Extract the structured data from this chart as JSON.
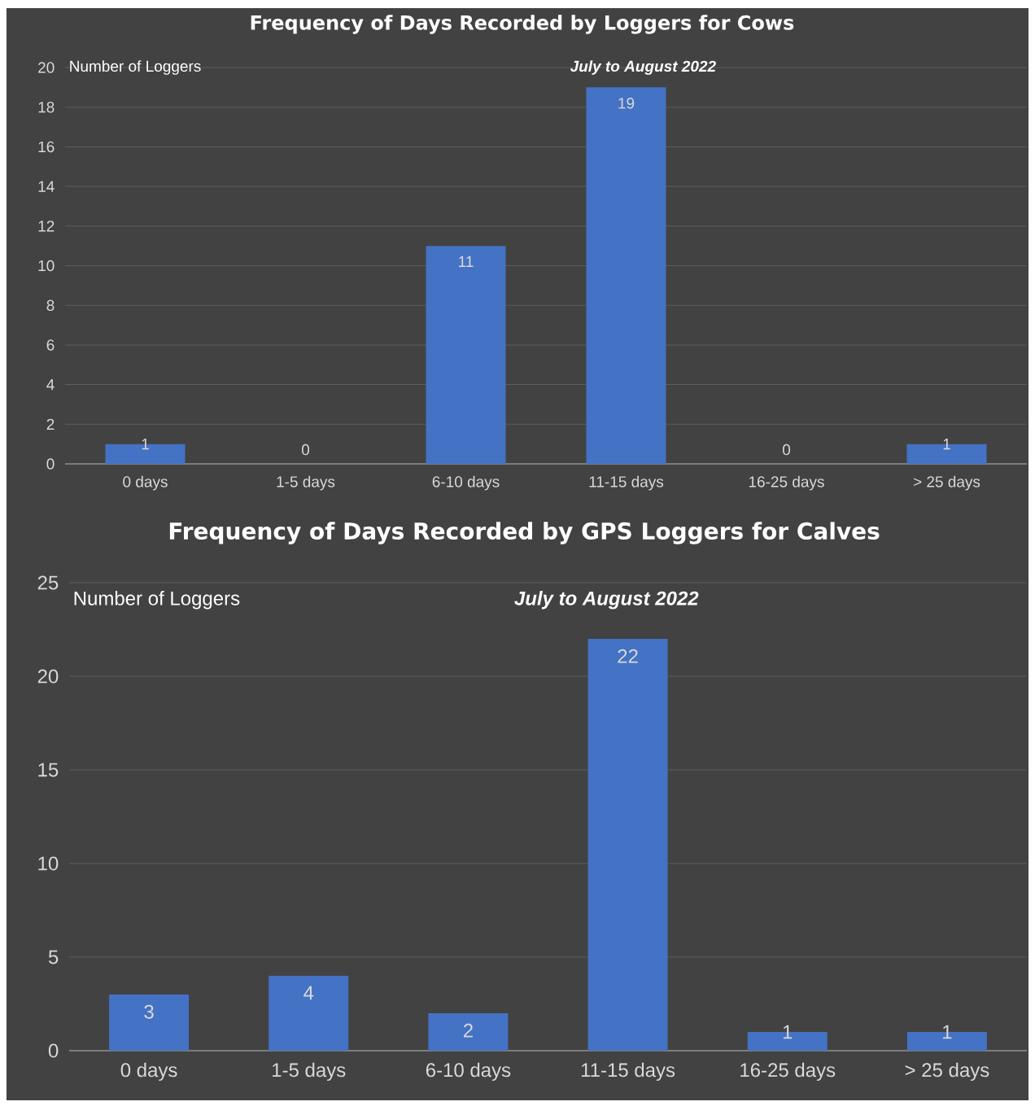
{
  "chart_data": [
    {
      "type": "bar",
      "title": "Frequency of Days Recorded by Loggers for Cows",
      "subtitle": "July to August 2022",
      "ylabel": "Number of Loggers",
      "categories": [
        "0 days",
        "1-5 days",
        "6-10 days",
        "11-15 days",
        "16-25 days",
        "> 25 days"
      ],
      "values": [
        1,
        0,
        11,
        19,
        0,
        1
      ],
      "color": "#4472c4",
      "ylim": [
        0,
        20
      ],
      "yticks": [
        0,
        2,
        4,
        6,
        8,
        10,
        12,
        14,
        16,
        18,
        20
      ],
      "grid": "y",
      "data_labels": true
    },
    {
      "type": "bar",
      "title": "Frequency of Days Recorded by GPS Loggers for Calves",
      "subtitle": "July to August 2022",
      "ylabel": "Number of Loggers",
      "categories": [
        "0 days",
        "1-5 days",
        "6-10 days",
        "11-15 days",
        "16-25 days",
        "> 25 days"
      ],
      "values": [
        3,
        4,
        2,
        22,
        1,
        1
      ],
      "color": "#4472c4",
      "ylim": [
        0,
        25
      ],
      "yticks": [
        0,
        5,
        10,
        15,
        20,
        25
      ],
      "grid": "y",
      "data_labels": true
    }
  ]
}
